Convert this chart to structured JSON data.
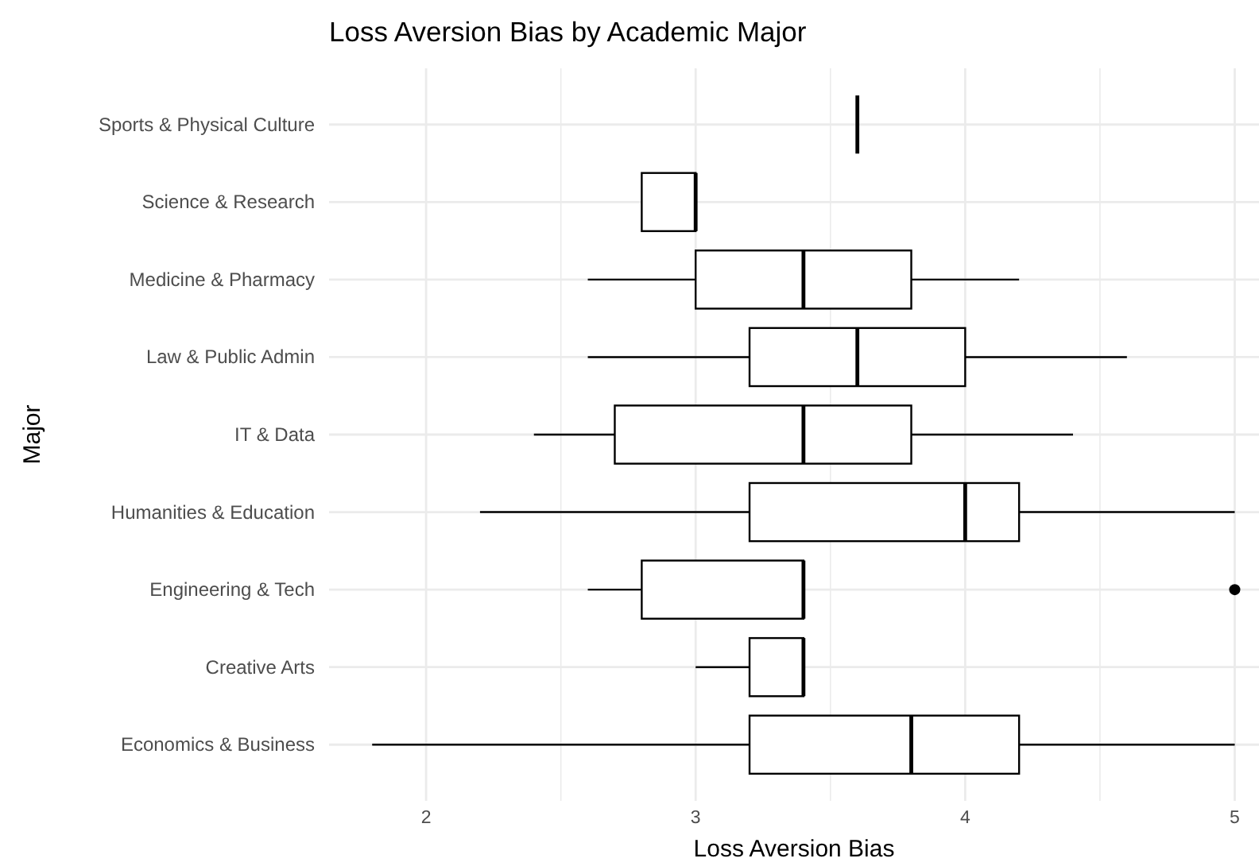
{
  "chart_data": {
    "type": "box",
    "orientation": "horizontal",
    "title": "Loss Aversion Bias by Academic Major",
    "xlabel": "Loss Aversion Bias",
    "ylabel": "Major",
    "categories": [
      "Sports & Physical Culture",
      "Science & Research",
      "Medicine & Pharmacy",
      "Law & Public Admin",
      "IT & Data",
      "Humanities & Education",
      "Engineering & Tech",
      "Creative Arts",
      "Economics & Business"
    ],
    "boxes": [
      {
        "low": 3.6,
        "q1": 3.6,
        "median": 3.6,
        "q3": 3.6,
        "high": 3.6
      },
      {
        "low": 2.8,
        "q1": 2.8,
        "median": 3.0,
        "q3": 3.0,
        "high": 3.0
      },
      {
        "low": 2.6,
        "q1": 3.0,
        "median": 3.4,
        "q3": 3.8,
        "high": 4.2
      },
      {
        "low": 2.6,
        "q1": 3.2,
        "median": 3.6,
        "q3": 4.0,
        "high": 4.6
      },
      {
        "low": 2.4,
        "q1": 2.7,
        "median": 3.4,
        "q3": 3.8,
        "high": 4.4
      },
      {
        "low": 2.2,
        "q1": 3.2,
        "median": 4.0,
        "q3": 4.2,
        "high": 5.0
      },
      {
        "low": 2.6,
        "q1": 2.8,
        "median": 3.4,
        "q3": 3.4,
        "high": 3.4,
        "outliers": [
          5.0
        ]
      },
      {
        "low": 3.0,
        "q1": 3.2,
        "median": 3.4,
        "q3": 3.4,
        "high": 3.4
      },
      {
        "low": 1.8,
        "q1": 3.2,
        "median": 3.8,
        "q3": 4.2,
        "high": 5.0
      }
    ],
    "color": "#000000",
    "xlim": [
      1.64,
      5.09
    ],
    "xticks": [
      2,
      {
        "value": 2.5,
        "label": null
      },
      3,
      {
        "value": 3.5,
        "label": null
      },
      4,
      {
        "value": 4.5,
        "label": null
      },
      5
    ],
    "grid": true
  }
}
